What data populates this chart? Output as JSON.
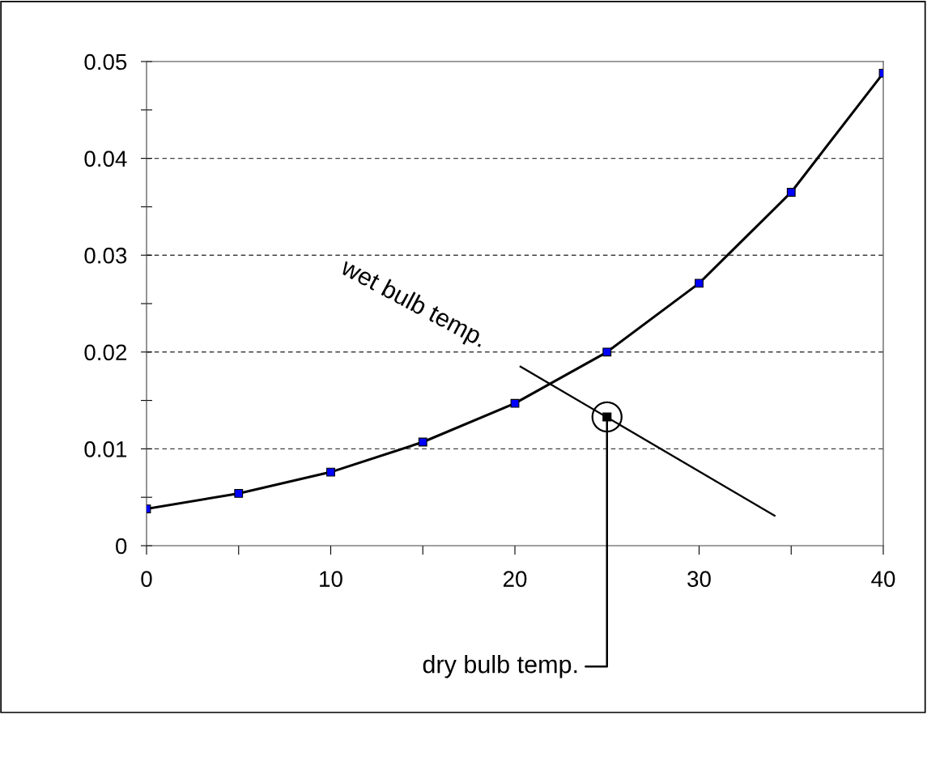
{
  "chart_data": {
    "type": "line",
    "series": [
      {
        "color": "#0000ff",
        "marker": "square",
        "x": [
          0,
          5,
          10,
          15,
          20,
          25,
          30,
          35,
          40
        ],
        "values": [
          0.0038,
          0.0054,
          0.0076,
          0.0107,
          0.0147,
          0.02,
          0.0271,
          0.0365,
          0.0488
        ]
      },
      {
        "type": "line",
        "color": "#000000",
        "marker": "none",
        "x": [
          20.3,
          34.1
        ],
        "values": [
          0.0185,
          0.0031
        ]
      },
      {
        "type": "scatter",
        "color": "#000000",
        "marker": "square",
        "x": [
          25
        ],
        "values": [
          0.0133
        ]
      }
    ],
    "xlim": [
      0,
      40
    ],
    "xticks": [
      0,
      {
        "value": 5,
        "label": null
      },
      10,
      {
        "value": 15,
        "label": null
      },
      20,
      {
        "value": 25,
        "label": null
      },
      30,
      {
        "value": 35,
        "label": null
      },
      40
    ],
    "ylim": [
      0,
      0.05
    ],
    "yticks": [
      0,
      {
        "value": 0.005,
        "label": null
      },
      0.01,
      {
        "value": 0.015,
        "label": null
      },
      0.02,
      {
        "value": 0.025,
        "label": null
      },
      0.03,
      {
        "value": 0.035,
        "label": null
      },
      0.04,
      {
        "value": 0.045,
        "label": null
      },
      0.05
    ],
    "grid": "y",
    "line_style": "solid",
    "annotations": [
      {
        "text": "wet bulb temp.",
        "x": 20.3,
        "y": 0.0185
      },
      {
        "text": "dry bulb temp.",
        "x": 25,
        "y": 0.0133
      }
    ]
  }
}
